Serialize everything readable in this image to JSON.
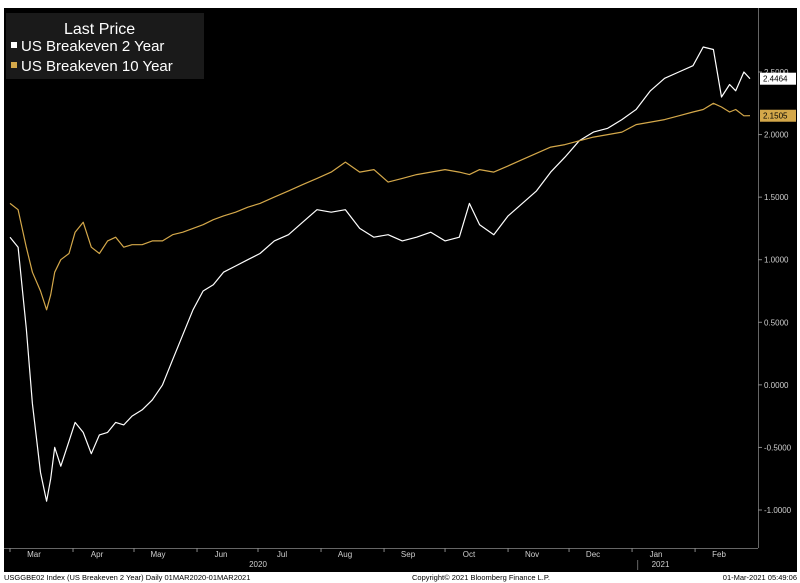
{
  "legend": {
    "title": "Last Price",
    "items": [
      {
        "label": "US Breakeven 2 Year",
        "color": "#ffffff"
      },
      {
        "label": "US Breakeven 10 Year",
        "color": "#d4a84a"
      }
    ]
  },
  "last_values": [
    {
      "text": "2.4464",
      "value": 2.4464,
      "box_bg": "#ffffff",
      "text_color": "#000000"
    },
    {
      "text": "2.1505",
      "value": 2.1505,
      "box_bg": "#d4a84a",
      "text_color": "#000000"
    }
  ],
  "footer": {
    "left": "USGGBE02 Index (US Breakeven 2 Year)  Daily 01MAR2020-01MAR2021",
    "center": "Copyright© 2021 Bloomberg Finance L.P.",
    "right": "01-Mar-2021 05:49:06"
  },
  "colors": {
    "background": "#000000",
    "axis_text": "#cfcfcf",
    "series_2y": "#ffffff",
    "series_10y": "#d4a84a"
  },
  "chart_data": {
    "type": "line",
    "title": "",
    "xlabel": "",
    "ylabel": "",
    "ylim": [
      -1.2,
      2.95
    ],
    "grid": false,
    "legend_position": "top-left",
    "y_ticks": [
      -1.0,
      -0.5,
      0.0,
      0.5,
      1.0,
      1.5,
      2.0,
      2.5
    ],
    "y_tick_labels": [
      "-1.0000",
      "-0.5000",
      "0.0000",
      "0.5000",
      "1.0000",
      "1.5000",
      "2.0000",
      "2.5000"
    ],
    "x_month_ticks": [
      {
        "label": "Mar",
        "date": "2020-03-01"
      },
      {
        "label": "Apr",
        "date": "2020-04-01"
      },
      {
        "label": "May",
        "date": "2020-05-01"
      },
      {
        "label": "Jun",
        "date": "2020-06-01"
      },
      {
        "label": "Jul",
        "date": "2020-07-01"
      },
      {
        "label": "Aug",
        "date": "2020-08-01"
      },
      {
        "label": "Sep",
        "date": "2020-09-01"
      },
      {
        "label": "Oct",
        "date": "2020-10-01"
      },
      {
        "label": "Nov",
        "date": "2020-11-01"
      },
      {
        "label": "Dec",
        "date": "2020-12-01"
      },
      {
        "label": "Jan",
        "date": "2021-01-01"
      },
      {
        "label": "Feb",
        "date": "2021-02-01"
      }
    ],
    "x_year_labels": [
      {
        "label": "2020",
        "date": "2020-07-01"
      },
      {
        "label": "2021",
        "date": "2021-01-15"
      }
    ],
    "x_range": [
      "2020-03-01",
      "2021-03-01"
    ],
    "series": [
      {
        "name": "US Breakeven 2 Year",
        "x": [
          "2020-03-01",
          "2020-03-05",
          "2020-03-09",
          "2020-03-12",
          "2020-03-16",
          "2020-03-19",
          "2020-03-21",
          "2020-03-23",
          "2020-03-26",
          "2020-03-30",
          "2020-04-02",
          "2020-04-06",
          "2020-04-10",
          "2020-04-14",
          "2020-04-18",
          "2020-04-22",
          "2020-04-26",
          "2020-04-30",
          "2020-05-05",
          "2020-05-10",
          "2020-05-15",
          "2020-05-20",
          "2020-05-25",
          "2020-05-30",
          "2020-06-04",
          "2020-06-09",
          "2020-06-14",
          "2020-06-20",
          "2020-06-26",
          "2020-07-02",
          "2020-07-09",
          "2020-07-16",
          "2020-07-23",
          "2020-07-30",
          "2020-08-06",
          "2020-08-13",
          "2020-08-20",
          "2020-08-27",
          "2020-09-03",
          "2020-09-10",
          "2020-09-17",
          "2020-09-24",
          "2020-10-01",
          "2020-10-08",
          "2020-10-13",
          "2020-10-18",
          "2020-10-25",
          "2020-11-01",
          "2020-11-08",
          "2020-11-15",
          "2020-11-22",
          "2020-11-29",
          "2020-12-06",
          "2020-12-13",
          "2020-12-20",
          "2020-12-27",
          "2021-01-03",
          "2021-01-10",
          "2021-01-17",
          "2021-01-24",
          "2021-01-31",
          "2021-02-05",
          "2021-02-10",
          "2021-02-14",
          "2021-02-18",
          "2021-02-21",
          "2021-02-25",
          "2021-02-28"
        ],
        "y": [
          1.18,
          1.1,
          0.45,
          -0.15,
          -0.7,
          -0.93,
          -0.75,
          -0.5,
          -0.65,
          -0.45,
          -0.3,
          -0.38,
          -0.55,
          -0.4,
          -0.38,
          -0.3,
          -0.32,
          -0.25,
          -0.2,
          -0.12,
          0.0,
          0.2,
          0.4,
          0.6,
          0.75,
          0.8,
          0.9,
          0.95,
          1.0,
          1.05,
          1.15,
          1.2,
          1.3,
          1.4,
          1.38,
          1.4,
          1.25,
          1.18,
          1.2,
          1.15,
          1.18,
          1.22,
          1.15,
          1.18,
          1.45,
          1.28,
          1.2,
          1.35,
          1.45,
          1.55,
          1.7,
          1.82,
          1.95,
          2.02,
          2.05,
          2.12,
          2.2,
          2.35,
          2.45,
          2.5,
          2.55,
          2.7,
          2.68,
          2.3,
          2.4,
          2.35,
          2.5,
          2.4464
        ]
      },
      {
        "name": "US Breakeven 10 Year",
        "x": [
          "2020-03-01",
          "2020-03-05",
          "2020-03-09",
          "2020-03-12",
          "2020-03-16",
          "2020-03-19",
          "2020-03-21",
          "2020-03-23",
          "2020-03-26",
          "2020-03-30",
          "2020-04-02",
          "2020-04-06",
          "2020-04-10",
          "2020-04-14",
          "2020-04-18",
          "2020-04-22",
          "2020-04-26",
          "2020-04-30",
          "2020-05-05",
          "2020-05-10",
          "2020-05-15",
          "2020-05-20",
          "2020-05-25",
          "2020-05-30",
          "2020-06-04",
          "2020-06-09",
          "2020-06-14",
          "2020-06-20",
          "2020-06-26",
          "2020-07-02",
          "2020-07-09",
          "2020-07-16",
          "2020-07-23",
          "2020-07-30",
          "2020-08-06",
          "2020-08-13",
          "2020-08-20",
          "2020-08-27",
          "2020-09-03",
          "2020-09-10",
          "2020-09-17",
          "2020-09-24",
          "2020-10-01",
          "2020-10-08",
          "2020-10-13",
          "2020-10-18",
          "2020-10-25",
          "2020-11-01",
          "2020-11-08",
          "2020-11-15",
          "2020-11-22",
          "2020-11-29",
          "2020-12-06",
          "2020-12-13",
          "2020-12-20",
          "2020-12-27",
          "2021-01-03",
          "2021-01-10",
          "2021-01-17",
          "2021-01-24",
          "2021-01-31",
          "2021-02-05",
          "2021-02-10",
          "2021-02-14",
          "2021-02-18",
          "2021-02-21",
          "2021-02-25",
          "2021-02-28"
        ],
        "y": [
          1.45,
          1.4,
          1.1,
          0.9,
          0.75,
          0.6,
          0.72,
          0.9,
          1.0,
          1.05,
          1.22,
          1.3,
          1.1,
          1.05,
          1.15,
          1.18,
          1.1,
          1.12,
          1.12,
          1.15,
          1.15,
          1.2,
          1.22,
          1.25,
          1.28,
          1.32,
          1.35,
          1.38,
          1.42,
          1.45,
          1.5,
          1.55,
          1.6,
          1.65,
          1.7,
          1.78,
          1.7,
          1.72,
          1.62,
          1.65,
          1.68,
          1.7,
          1.72,
          1.7,
          1.68,
          1.72,
          1.7,
          1.75,
          1.8,
          1.85,
          1.9,
          1.92,
          1.95,
          1.98,
          2.0,
          2.02,
          2.08,
          2.1,
          2.12,
          2.15,
          2.18,
          2.2,
          2.25,
          2.22,
          2.18,
          2.2,
          2.15,
          2.1505
        ]
      }
    ]
  }
}
